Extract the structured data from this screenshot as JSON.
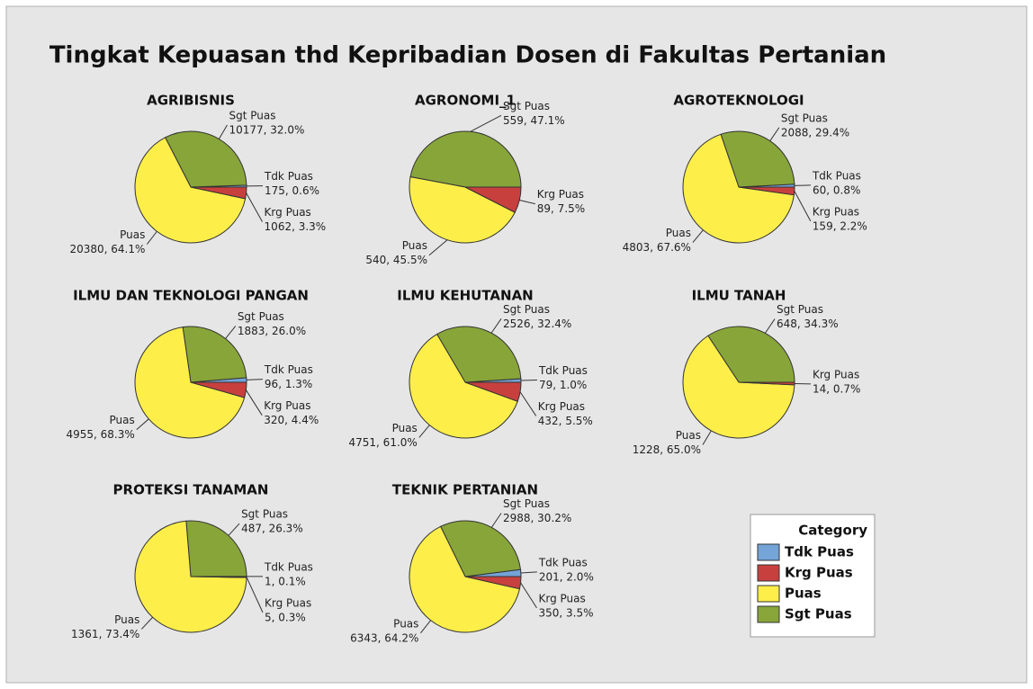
{
  "title": "Tingkat Kepuasan thd Kepribadian Dosen di Fakultas Pertanian",
  "legend": {
    "title": "Category",
    "position": "bottom-right",
    "items": [
      {
        "name": "Tdk Puas",
        "color": "#74a4d8"
      },
      {
        "name": "Krg Puas",
        "color": "#c8403e"
      },
      {
        "name": "Puas",
        "color": "#fdee4a"
      },
      {
        "name": "Sgt Puas",
        "color": "#88a53a"
      }
    ]
  },
  "chart_data": [
    {
      "type": "pie",
      "title": "AGRIBISNIS",
      "categories": [
        "Tdk Puas",
        "Sgt Puas",
        "Puas",
        "Krg Puas"
      ],
      "values": [
        175,
        10177,
        20380,
        1062
      ],
      "value_labels": [
        "175, 0.6%",
        "10177, 32.0%",
        "20380, 64.1%",
        "1062, 3.3%"
      ],
      "colors": [
        "#74a4d8",
        "#88a53a",
        "#fdee4a",
        "#c8403e"
      ]
    },
    {
      "type": "pie",
      "title": "AGRONOMI_1",
      "categories": [
        "Sgt Puas",
        "Puas",
        "Krg Puas"
      ],
      "values": [
        559,
        540,
        89
      ],
      "value_labels": [
        "559, 47.1%",
        "540, 45.5%",
        "89, 7.5%"
      ],
      "colors": [
        "#88a53a",
        "#fdee4a",
        "#c8403e"
      ]
    },
    {
      "type": "pie",
      "title": "AGROTEKNOLOGI",
      "categories": [
        "Tdk Puas",
        "Sgt Puas",
        "Puas",
        "Krg Puas"
      ],
      "values": [
        60,
        2088,
        4803,
        159
      ],
      "value_labels": [
        "60, 0.8%",
        "2088, 29.4%",
        "4803, 67.6%",
        "159, 2.2%"
      ],
      "colors": [
        "#74a4d8",
        "#88a53a",
        "#fdee4a",
        "#c8403e"
      ]
    },
    {
      "type": "pie",
      "title": "ILMU DAN TEKNOLOGI PANGAN",
      "categories": [
        "Tdk Puas",
        "Sgt Puas",
        "Puas",
        "Krg Puas"
      ],
      "values": [
        96,
        1883,
        4955,
        320
      ],
      "value_labels": [
        "96, 1.3%",
        "1883, 26.0%",
        "4955, 68.3%",
        "320, 4.4%"
      ],
      "colors": [
        "#74a4d8",
        "#88a53a",
        "#fdee4a",
        "#c8403e"
      ]
    },
    {
      "type": "pie",
      "title": "ILMU KEHUTANAN",
      "categories": [
        "Tdk Puas",
        "Sgt Puas",
        "Puas",
        "Krg Puas"
      ],
      "values": [
        79,
        2526,
        4751,
        432
      ],
      "value_labels": [
        "79, 1.0%",
        "2526, 32.4%",
        "4751, 61.0%",
        "432, 5.5%"
      ],
      "colors": [
        "#74a4d8",
        "#88a53a",
        "#fdee4a",
        "#c8403e"
      ]
    },
    {
      "type": "pie",
      "title": "ILMU TANAH",
      "categories": [
        "Sgt Puas",
        "Puas",
        "Krg Puas"
      ],
      "values": [
        648,
        1228,
        14
      ],
      "value_labels": [
        "648, 34.3%",
        "1228, 65.0%",
        "14, 0.7%"
      ],
      "colors": [
        "#88a53a",
        "#fdee4a",
        "#c8403e"
      ]
    },
    {
      "type": "pie",
      "title": "PROTEKSI TANAMAN",
      "categories": [
        "Tdk Puas",
        "Sgt Puas",
        "Puas",
        "Krg Puas"
      ],
      "values": [
        1,
        487,
        1361,
        5
      ],
      "value_labels": [
        "1, 0.1%",
        "487, 26.3%",
        "1361, 73.4%",
        "5, 0.3%"
      ],
      "colors": [
        "#74a4d8",
        "#88a53a",
        "#fdee4a",
        "#c8403e"
      ]
    },
    {
      "type": "pie",
      "title": "TEKNIK PERTANIAN",
      "categories": [
        "Tdk Puas",
        "Sgt Puas",
        "Puas",
        "Krg Puas"
      ],
      "values": [
        201,
        2988,
        6343,
        350
      ],
      "value_labels": [
        "201, 2.0%",
        "2988, 30.2%",
        "6343, 64.2%",
        "350, 3.5%"
      ],
      "colors": [
        "#74a4d8",
        "#88a53a",
        "#fdee4a",
        "#c8403e"
      ]
    }
  ]
}
